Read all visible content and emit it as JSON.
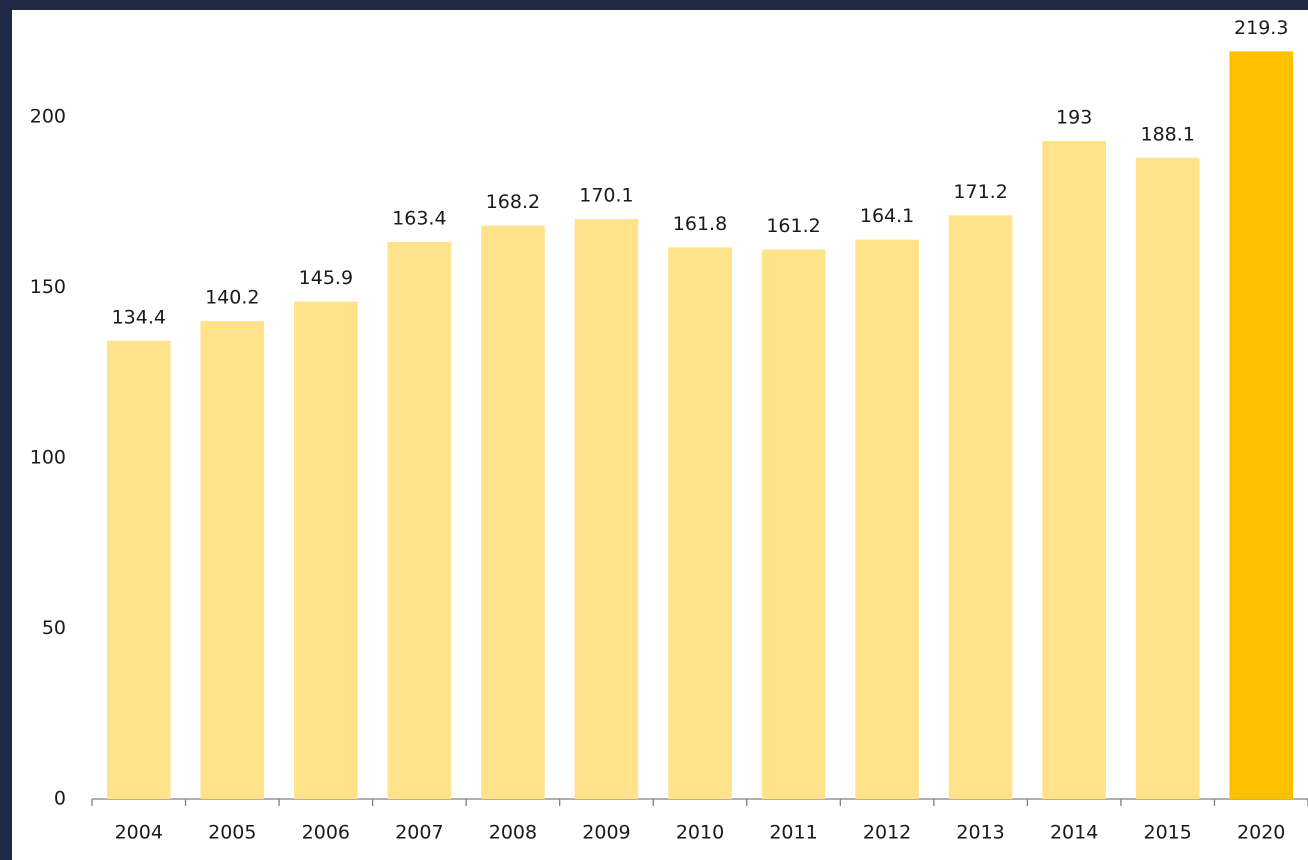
{
  "chart_data": {
    "type": "bar",
    "categories": [
      "2004",
      "2005",
      "2006",
      "2007",
      "2008",
      "2009",
      "2010",
      "2011",
      "2012",
      "2013",
      "2014",
      "2015",
      "2020"
    ],
    "values": [
      134.4,
      140.2,
      145.9,
      163.4,
      168.2,
      170.1,
      161.8,
      161.2,
      164.1,
      171.2,
      193,
      188.1,
      219.3
    ],
    "colors": [
      "#FFE28A",
      "#FFE28A",
      "#FFE28A",
      "#FFE28A",
      "#FFE28A",
      "#FFE28A",
      "#FFE28A",
      "#FFE28A",
      "#FFE28A",
      "#FFE28A",
      "#FFE28A",
      "#FFE28A",
      "#FFC000"
    ],
    "ylim": [
      0,
      220
    ],
    "yticks": [
      0,
      50,
      100,
      150,
      200
    ],
    "grid": false
  }
}
